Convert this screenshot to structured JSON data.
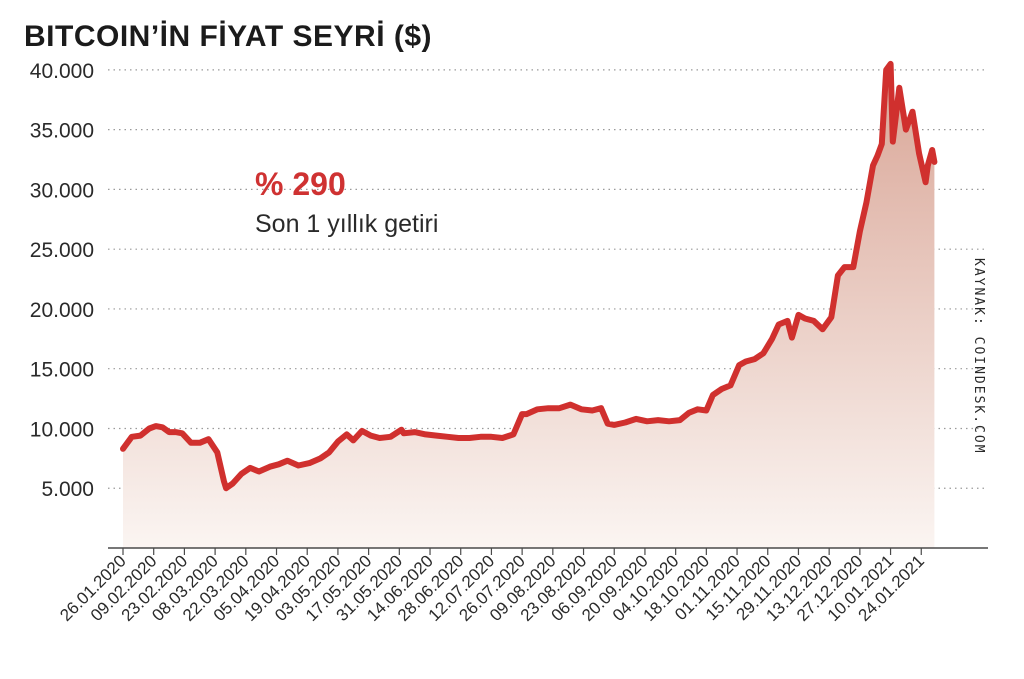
{
  "title": "BITCOIN’İN FİYAT SEYRİ ($)",
  "callout": {
    "value": "% 290",
    "label": "Son 1 yıllık getiri"
  },
  "source": "KAYNAK: COINDESK.COM",
  "colors": {
    "line": "#d0302e",
    "fill_top": "#d9a596",
    "fill_bottom": "#fbf5f2",
    "grid": "#9a9a9a",
    "axis": "#4a4a4a",
    "text": "#2a2a2a"
  },
  "chart_data": {
    "type": "area",
    "title": "BITCOIN’İN FİYAT SEYRİ ($)",
    "xlabel": "",
    "ylabel": "",
    "grid": true,
    "ylim": [
      0,
      42500
    ],
    "xlim": [
      "2020-01-26",
      "2021-02-02"
    ],
    "y_ticks": [
      5000,
      10000,
      15000,
      20000,
      25000,
      30000,
      35000,
      40000
    ],
    "y_tick_labels": [
      "5.000",
      "10.000",
      "15.000",
      "20.000",
      "25.000",
      "30.000",
      "35.000",
      "40.000"
    ],
    "x_ticks": [
      "2020-01-26",
      "2020-02-09",
      "2020-02-23",
      "2020-03-08",
      "2020-03-22",
      "2020-04-05",
      "2020-04-19",
      "2020-05-03",
      "2020-05-17",
      "2020-05-31",
      "2020-06-14",
      "2020-06-28",
      "2020-07-12",
      "2020-07-26",
      "2020-08-09",
      "2020-08-23",
      "2020-09-06",
      "2020-09-20",
      "2020-10-04",
      "2020-10-18",
      "2020-11-01",
      "2020-11-15",
      "2020-11-29",
      "2020-12-13",
      "2020-12-27",
      "2021-01-10",
      "2021-01-24"
    ],
    "x_tick_labels": [
      "26.01.2020",
      "09.02.2020",
      "23.02.2020",
      "08.03.2020",
      "22.03.2020",
      "05.04.2020",
      "19.04.2020",
      "03.05.2020",
      "17.05.2020",
      "31.05.2020",
      "14.06.2020",
      "28.06.2020",
      "12.07.2020",
      "26.07.2020",
      "09.08.2020",
      "23.08.2020",
      "06.09.2020",
      "20.09.2020",
      "04.10.2020",
      "18.10.2020",
      "01.11.2020",
      "15.11.2020",
      "29.11.2020",
      "13.12.2020",
      "27.12.2020",
      "10.01.2021",
      "24.01.2021"
    ],
    "series": [
      {
        "x": [
          "2020-01-26",
          "2020-01-30",
          "2020-02-03",
          "2020-02-07",
          "2020-02-10",
          "2020-02-13",
          "2020-02-16",
          "2020-02-19",
          "2020-02-22",
          "2020-02-26",
          "2020-03-01",
          "2020-03-05",
          "2020-03-09",
          "2020-03-12",
          "2020-03-13",
          "2020-03-16",
          "2020-03-20",
          "2020-03-24",
          "2020-03-28",
          "2020-04-02",
          "2020-04-06",
          "2020-04-10",
          "2020-04-15",
          "2020-04-20",
          "2020-04-25",
          "2020-04-29",
          "2020-05-03",
          "2020-05-07",
          "2020-05-10",
          "2020-05-14",
          "2020-05-18",
          "2020-05-22",
          "2020-05-27",
          "2020-06-01",
          "2020-06-02",
          "2020-06-07",
          "2020-06-12",
          "2020-06-17",
          "2020-06-22",
          "2020-06-27",
          "2020-07-02",
          "2020-07-07",
          "2020-07-12",
          "2020-07-17",
          "2020-07-22",
          "2020-07-26",
          "2020-07-28",
          "2020-08-02",
          "2020-08-07",
          "2020-08-12",
          "2020-08-17",
          "2020-08-22",
          "2020-08-27",
          "2020-08-31",
          "2020-09-03",
          "2020-09-06",
          "2020-09-11",
          "2020-09-16",
          "2020-09-21",
          "2020-09-26",
          "2020-10-01",
          "2020-10-06",
          "2020-10-10",
          "2020-10-14",
          "2020-10-18",
          "2020-10-21",
          "2020-10-25",
          "2020-10-29",
          "2020-11-02",
          "2020-11-05",
          "2020-11-09",
          "2020-11-13",
          "2020-11-17",
          "2020-11-20",
          "2020-11-24",
          "2020-11-26",
          "2020-11-29",
          "2020-12-02",
          "2020-12-06",
          "2020-12-10",
          "2020-12-14",
          "2020-12-17",
          "2020-12-20",
          "2020-12-24",
          "2020-12-27",
          "2020-12-30",
          "2021-01-02",
          "2021-01-04",
          "2021-01-06",
          "2021-01-08",
          "2021-01-10",
          "2021-01-11",
          "2021-01-14",
          "2021-01-17",
          "2021-01-20",
          "2021-01-23",
          "2021-01-26",
          "2021-01-27",
          "2021-01-29",
          "2021-01-30"
        ],
        "values": [
          8300,
          9300,
          9400,
          10000,
          10200,
          10100,
          9700,
          9700,
          9600,
          8800,
          8800,
          9100,
          8000,
          5600,
          5000,
          5400,
          6200,
          6700,
          6400,
          6800,
          7000,
          7300,
          6900,
          7100,
          7500,
          8000,
          8900,
          9500,
          9000,
          9800,
          9400,
          9200,
          9300,
          9900,
          9600,
          9700,
          9500,
          9400,
          9300,
          9200,
          9200,
          9300,
          9300,
          9200,
          9500,
          11200,
          11200,
          11600,
          11700,
          11700,
          12000,
          11600,
          11500,
          11700,
          10400,
          10300,
          10500,
          10800,
          10600,
          10700,
          10600,
          10700,
          11300,
          11600,
          11500,
          12800,
          13300,
          13600,
          15300,
          15600,
          15800,
          16300,
          17500,
          18700,
          19000,
          17600,
          19500,
          19200,
          19000,
          18300,
          19300,
          22800,
          23500,
          23500,
          26500,
          28900,
          32000,
          32800,
          33800,
          40000,
          40500,
          34000,
          38500,
          35000,
          36500,
          33000,
          30600,
          32000,
          33300,
          32300
        ]
      }
    ]
  }
}
